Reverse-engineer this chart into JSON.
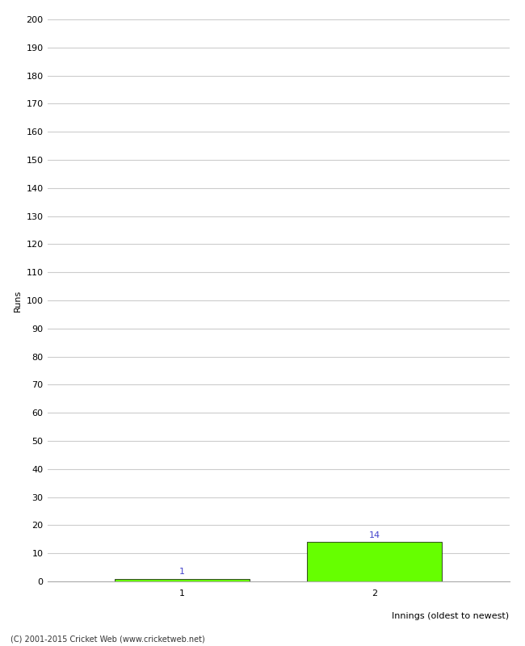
{
  "categories": [
    "1",
    "2"
  ],
  "values": [
    1,
    14
  ],
  "bar_color": "#66ff00",
  "bar_edge_color": "#000000",
  "ylabel": "Runs",
  "xlabel": "Innings (oldest to newest)",
  "ylim": [
    0,
    200
  ],
  "ytick_step": 10,
  "background_color": "#ffffff",
  "grid_color": "#cccccc",
  "footer": "(C) 2001-2015 Cricket Web (www.cricketweb.net)",
  "footer_color": "#333333",
  "label_color": "#4444cc",
  "label_fontsize": 8,
  "axis_fontsize": 8,
  "tick_fontsize": 8,
  "bar_width": 0.7,
  "xlim_left": 0.3,
  "xlim_right": 2.7
}
